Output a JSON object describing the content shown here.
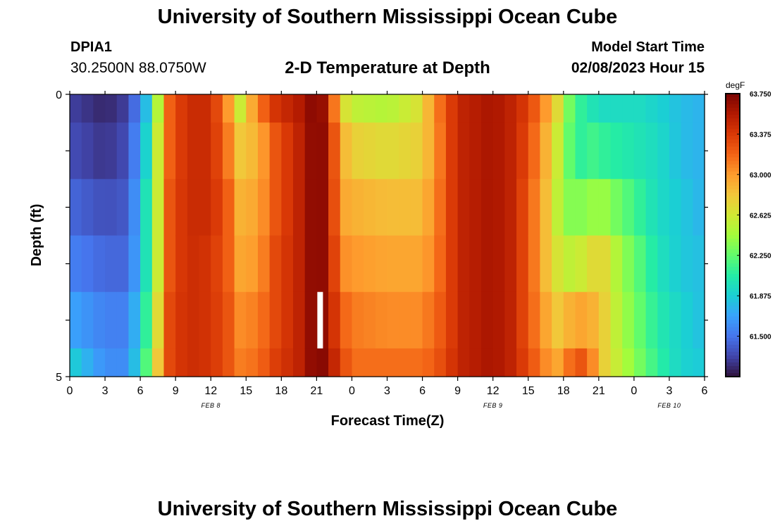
{
  "header": {
    "title": "University of Southern Mississippi Ocean Cube",
    "station_id": "DPIA1",
    "coordinates": "30.2500N  88.0750W",
    "subtitle": "2-D Temperature at Depth",
    "model_start_label": "Model Start Time",
    "model_start_value": "02/08/2023 Hour 15"
  },
  "footer": {
    "title": "University of Southern Mississippi Ocean Cube"
  },
  "chart_data": {
    "type": "heatmap",
    "title": "2-D Temperature at Depth",
    "xlabel": "Forecast Time(Z)",
    "ylabel": "Depth (ft)",
    "x_ticks": [
      "0",
      "3",
      "6",
      "9",
      "12",
      "15",
      "18",
      "21",
      "0",
      "3",
      "6",
      "9",
      "12",
      "15",
      "18",
      "21",
      "0",
      "3",
      "6"
    ],
    "x_hours_range": [
      0,
      54
    ],
    "date_labels": [
      {
        "text": "FEB 8",
        "hour": 12
      },
      {
        "text": "FEB 9",
        "hour": 36
      },
      {
        "text": "FEB 10",
        "hour": 51
      }
    ],
    "y_ticks": [
      "0",
      "5"
    ],
    "ylim": [
      0,
      5
    ],
    "y_minor_tick_count": 4,
    "colorbar": {
      "units": "degF",
      "range": [
        61.125,
        63.75
      ],
      "labels": [
        "63.750",
        "63.375",
        "63.000",
        "62.625",
        "62.250",
        "61.875",
        "61.500"
      ],
      "colors": [
        "#30123b",
        "#4145ab",
        "#4675ed",
        "#39a2fc",
        "#1bcfd4",
        "#24eca6",
        "#61fc6c",
        "#a4fc3b",
        "#d1e834",
        "#f3c63a",
        "#fe9b2d",
        "#f36315",
        "#d93806",
        "#b11901",
        "#7a0402"
      ]
    },
    "depth_bands_ft": [
      0,
      0.5,
      1.5,
      2.5,
      3.5,
      4.5,
      5
    ],
    "series": [
      {
        "hour": 0,
        "values": [
          61.3,
          61.35,
          61.45,
          61.55,
          61.7,
          61.9
        ]
      },
      {
        "hour": 3,
        "values": [
          61.2,
          61.25,
          61.35,
          61.45,
          61.55,
          61.6
        ]
      },
      {
        "hour": 5,
        "values": [
          61.3,
          61.35,
          61.4,
          61.45,
          61.55,
          61.6
        ]
      },
      {
        "hour": 6.5,
        "values": [
          61.8,
          61.9,
          62.0,
          62.0,
          62.1,
          62.2
        ]
      },
      {
        "hour": 7.5,
        "values": [
          62.5,
          62.6,
          62.6,
          62.6,
          62.7,
          62.8
        ]
      },
      {
        "hour": 8.5,
        "values": [
          63.2,
          63.2,
          63.25,
          63.25,
          63.3,
          63.3
        ]
      },
      {
        "hour": 10,
        "values": [
          63.45,
          63.45,
          63.45,
          63.45,
          63.45,
          63.45
        ]
      },
      {
        "hour": 12,
        "values": [
          63.45,
          63.45,
          63.45,
          63.4,
          63.4,
          63.4
        ]
      },
      {
        "hour": 13.5,
        "values": [
          63.0,
          63.1,
          63.2,
          63.2,
          63.25,
          63.25
        ]
      },
      {
        "hour": 14.5,
        "values": [
          62.6,
          62.8,
          62.9,
          62.95,
          63.05,
          63.1
        ]
      },
      {
        "hour": 16,
        "values": [
          63.1,
          62.9,
          62.95,
          63.0,
          63.1,
          63.15
        ]
      },
      {
        "hour": 17.5,
        "values": [
          63.4,
          63.25,
          63.25,
          63.3,
          63.3,
          63.35
        ]
      },
      {
        "hour": 19.5,
        "values": [
          63.55,
          63.5,
          63.5,
          63.5,
          63.5,
          63.5
        ]
      },
      {
        "hour": 21,
        "values": [
          63.75,
          63.75,
          63.75,
          63.75,
          63.75,
          63.75
        ]
      },
      {
        "hour": 22,
        "values": [
          63.55,
          63.6,
          63.6,
          63.6,
          63.6,
          63.65
        ]
      },
      {
        "hour": 23,
        "values": [
          62.7,
          62.9,
          62.95,
          63.05,
          63.2,
          63.3
        ]
      },
      {
        "hour": 24.5,
        "values": [
          62.55,
          62.75,
          62.9,
          63.0,
          63.1,
          63.15
        ]
      },
      {
        "hour": 27,
        "values": [
          62.5,
          62.7,
          62.85,
          62.95,
          63.05,
          63.15
        ]
      },
      {
        "hour": 29.5,
        "values": [
          62.65,
          62.75,
          62.85,
          62.95,
          63.05,
          63.15
        ]
      },
      {
        "hour": 31,
        "values": [
          63.0,
          62.95,
          63.0,
          63.05,
          63.15,
          63.2
        ]
      },
      {
        "hour": 32,
        "values": [
          63.3,
          63.3,
          63.3,
          63.3,
          63.3,
          63.35
        ]
      },
      {
        "hour": 33.5,
        "values": [
          63.5,
          63.5,
          63.5,
          63.5,
          63.5,
          63.5
        ]
      },
      {
        "hour": 36,
        "values": [
          63.6,
          63.6,
          63.6,
          63.6,
          63.6,
          63.6
        ]
      },
      {
        "hour": 37.5,
        "values": [
          63.5,
          63.5,
          63.5,
          63.5,
          63.5,
          63.5
        ]
      },
      {
        "hour": 39,
        "values": [
          63.35,
          63.3,
          63.25,
          63.25,
          63.25,
          63.3
        ]
      },
      {
        "hour": 40.5,
        "values": [
          63.0,
          62.9,
          62.85,
          62.85,
          62.95,
          63.05
        ]
      },
      {
        "hour": 41.5,
        "values": [
          62.7,
          62.6,
          62.55,
          62.65,
          62.8,
          62.95
        ]
      },
      {
        "hour": 42.5,
        "values": [
          62.3,
          62.25,
          62.35,
          62.55,
          62.9,
          63.15
        ]
      },
      {
        "hour": 43.5,
        "values": [
          62.1,
          62.1,
          62.35,
          62.6,
          62.95,
          63.25
        ]
      },
      {
        "hour": 44.5,
        "values": [
          62.0,
          62.15,
          62.4,
          62.7,
          62.9,
          63.05
        ]
      },
      {
        "hour": 45.5,
        "values": [
          61.95,
          62.1,
          62.4,
          62.7,
          62.75,
          62.75
        ]
      },
      {
        "hour": 47,
        "values": [
          61.95,
          62.05,
          62.25,
          62.4,
          62.45,
          62.5
        ]
      },
      {
        "hour": 48.5,
        "values": [
          61.95,
          62.0,
          62.1,
          62.2,
          62.25,
          62.3
        ]
      },
      {
        "hour": 50,
        "values": [
          61.9,
          61.95,
          61.95,
          62.0,
          62.05,
          62.1
        ]
      },
      {
        "hour": 52,
        "values": [
          61.8,
          61.8,
          61.85,
          61.85,
          61.9,
          61.9
        ]
      },
      {
        "hour": 54,
        "values": [
          61.75,
          61.75,
          61.75,
          61.8,
          61.8,
          61.85
        ]
      }
    ],
    "marker": {
      "hour": 21.3,
      "depth_range_ft": [
        3.5,
        4.5
      ],
      "color": "#ffffff"
    }
  }
}
